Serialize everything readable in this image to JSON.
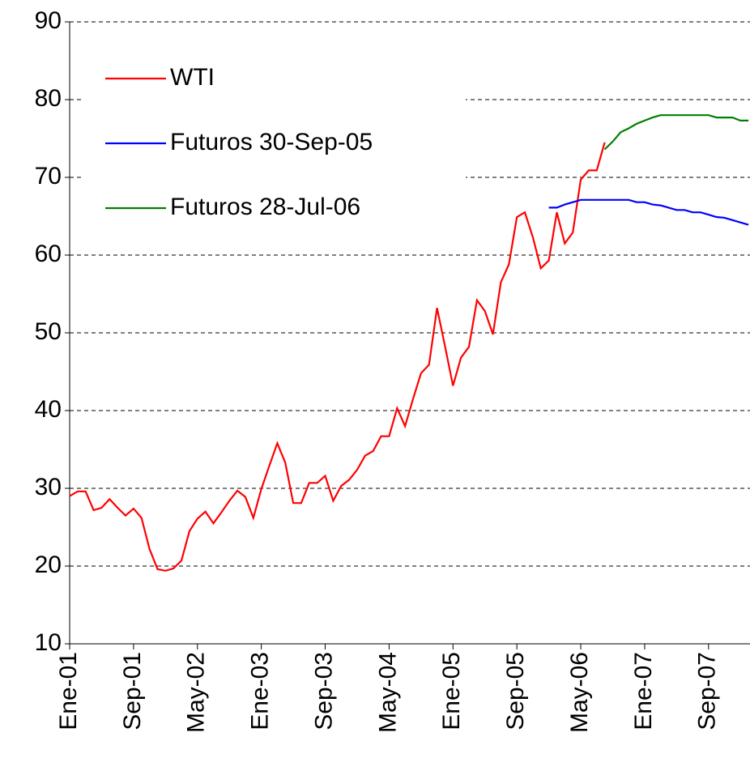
{
  "chart_data": {
    "type": "line",
    "categories": [
      "Ene-01",
      null,
      null,
      null,
      null,
      null,
      null,
      null,
      "Sep-01",
      null,
      null,
      null,
      null,
      null,
      null,
      null,
      "May-02",
      null,
      null,
      null,
      null,
      null,
      null,
      null,
      "Ene-03",
      null,
      null,
      null,
      null,
      null,
      null,
      null,
      "Sep-03",
      null,
      null,
      null,
      null,
      null,
      null,
      null,
      "May-04",
      null,
      null,
      null,
      null,
      null,
      null,
      null,
      "Ene-05",
      null,
      null,
      null,
      null,
      null,
      null,
      null,
      "Sep-05",
      null,
      null,
      null,
      null,
      null,
      null,
      null,
      "May-06",
      null,
      null,
      null,
      null,
      null,
      null,
      null,
      "Ene-07",
      null,
      null,
      null,
      null,
      null,
      null,
      null,
      "Sep-07",
      null,
      null,
      null,
      null,
      null
    ],
    "series": [
      {
        "name": "WTI",
        "color": "#ff0000",
        "values": [
          29.0,
          29.6,
          29.6,
          27.2,
          27.5,
          28.6,
          27.5,
          26.5,
          27.4,
          26.2,
          22.2,
          19.6,
          19.4,
          19.7,
          20.7,
          24.5,
          26.1,
          27.0,
          25.5,
          26.9,
          28.4,
          29.7,
          28.9,
          26.2,
          29.9,
          32.9,
          35.8,
          33.3,
          28.1,
          28.1,
          30.7,
          30.7,
          31.6,
          28.4,
          30.3,
          31.1,
          32.4,
          34.2,
          34.8,
          36.7,
          36.7,
          40.3,
          38.0,
          41.5,
          44.8,
          45.9,
          53.2,
          48.3,
          43.2,
          46.8,
          48.2,
          54.2,
          52.8,
          49.8,
          56.5,
          58.8,
          64.9,
          65.5,
          62.3,
          58.3,
          59.3,
          65.5,
          61.5,
          62.9,
          69.7,
          70.9,
          70.9,
          74.5,
          null,
          null,
          null,
          null,
          null,
          null,
          null,
          null,
          null,
          null,
          null,
          null,
          null,
          null,
          null,
          null,
          null,
          null
        ]
      },
      {
        "name": "Futuros 30-Sep-05",
        "color": "#0000ff",
        "values": [
          null,
          null,
          null,
          null,
          null,
          null,
          null,
          null,
          null,
          null,
          null,
          null,
          null,
          null,
          null,
          null,
          null,
          null,
          null,
          null,
          null,
          null,
          null,
          null,
          null,
          null,
          null,
          null,
          null,
          null,
          null,
          null,
          null,
          null,
          null,
          null,
          null,
          null,
          null,
          null,
          null,
          null,
          null,
          null,
          null,
          null,
          null,
          null,
          null,
          null,
          null,
          null,
          null,
          null,
          null,
          null,
          null,
          null,
          null,
          null,
          66.1,
          66.1,
          66.5,
          66.8,
          67.1,
          67.1,
          67.1,
          67.1,
          67.1,
          67.1,
          67.1,
          66.8,
          66.8,
          66.5,
          66.4,
          66.1,
          65.8,
          65.8,
          65.5,
          65.5,
          65.2,
          64.9,
          64.8,
          64.5,
          64.2,
          63.9
        ]
      },
      {
        "name": "Futuros 28-Jul-06",
        "color": "#008000",
        "values": [
          null,
          null,
          null,
          null,
          null,
          null,
          null,
          null,
          null,
          null,
          null,
          null,
          null,
          null,
          null,
          null,
          null,
          null,
          null,
          null,
          null,
          null,
          null,
          null,
          null,
          null,
          null,
          null,
          null,
          null,
          null,
          null,
          null,
          null,
          null,
          null,
          null,
          null,
          null,
          null,
          null,
          null,
          null,
          null,
          null,
          null,
          null,
          null,
          null,
          null,
          null,
          null,
          null,
          null,
          null,
          null,
          null,
          null,
          null,
          null,
          null,
          null,
          null,
          null,
          null,
          null,
          null,
          73.6,
          74.6,
          75.8,
          76.3,
          76.9,
          77.3,
          77.7,
          78.0,
          78.0,
          78.0,
          78.0,
          78.0,
          78.0,
          78.0,
          77.7,
          77.7,
          77.7,
          77.3,
          77.3
        ]
      }
    ],
    "ylim": [
      10,
      90
    ],
    "yticks": [
      10,
      20,
      30,
      40,
      50,
      60,
      70,
      80,
      90
    ],
    "grid": true,
    "legend": "upper left"
  }
}
